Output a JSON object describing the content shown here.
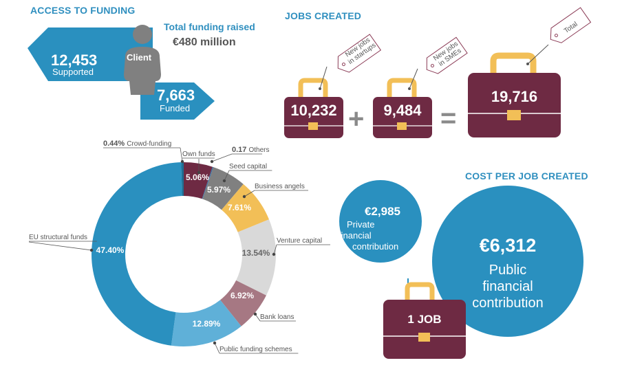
{
  "access": {
    "heading": "ACCESS TO FUNDING",
    "total_title": "Total funding raised",
    "total_value": "€480 million",
    "client_label": "Client",
    "supported_value": "12,453",
    "supported_label": "Supported",
    "funded_value": "7,663",
    "funded_label": "Funded"
  },
  "jobs": {
    "heading": "JOBS CREATED",
    "startups_value": "10,232",
    "startups_tag": [
      "New jobs",
      "in startups"
    ],
    "smes_value": "9,484",
    "smes_tag": [
      "New jobs",
      "in SMEs"
    ],
    "total_value": "19,716",
    "total_tag": "Total",
    "plus": "+",
    "equals": "="
  },
  "cost": {
    "heading": "COST PER JOB CREATED",
    "private_value": "€2,985",
    "private_label": [
      "Private",
      "financial",
      "contribution"
    ],
    "public_value": "€6,312",
    "public_label": [
      "Public",
      "financial",
      "contribution"
    ],
    "job_label": "1 JOB"
  },
  "colors": {
    "blue": "#2a90bf",
    "light_blue": "#5fb0d8",
    "maroon": "#6e2a43",
    "gold": "#f2bf57",
    "grey": "#808080",
    "light_grey": "#d9d9d9",
    "mauve": "#a67883"
  },
  "chart_data": {
    "type": "pie",
    "variant": "donut",
    "unit": "%",
    "slices": [
      {
        "name": "Own funds",
        "value": 5.06,
        "value_label": "5.06%",
        "color": "#6e2a43"
      },
      {
        "name": "Others",
        "value": 0.17,
        "value_label": "0.17",
        "color": "#3b6fa0"
      },
      {
        "name": "Seed capital",
        "value": 5.97,
        "value_label": "5.97%",
        "color": "#808080"
      },
      {
        "name": "Business angels",
        "value": 7.61,
        "value_label": "7.61%",
        "color": "#f2bf57"
      },
      {
        "name": "Venture capital",
        "value": 13.54,
        "value_label": "13.54%",
        "color": "#d9d9d9"
      },
      {
        "name": "Bank loans",
        "value": 6.92,
        "value_label": "6.92%",
        "color": "#a67883"
      },
      {
        "name": "Public funding schemes",
        "value": 12.89,
        "value_label": "12.89%",
        "color": "#5fb0d8"
      },
      {
        "name": "EU structural funds",
        "value": 47.4,
        "value_label": "47.40%",
        "color": "#2a90bf"
      },
      {
        "name": "Crowd-funding",
        "value": 0.44,
        "value_label": "0.44%",
        "color": "#1e6f94"
      }
    ]
  }
}
